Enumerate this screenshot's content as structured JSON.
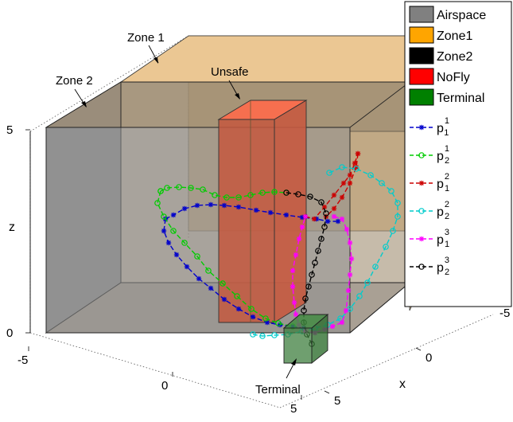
{
  "chart_data": {
    "type": "line3d",
    "xlabel": "x",
    "ylabel": "",
    "zlabel": "z",
    "xlim": [
      -5,
      5
    ],
    "ylim": [
      -5,
      5
    ],
    "zlim": [
      0,
      5
    ],
    "x_ticks": [
      "5",
      "0",
      "-5"
    ],
    "y_ticks": [
      "-5",
      "0",
      "5"
    ],
    "z_ticks": [
      "0",
      "5"
    ],
    "grid": false,
    "legend": {
      "placement": "top-right",
      "regions": [
        {
          "name": "Airspace",
          "color": "#808080"
        },
        {
          "name": "Zone1",
          "color": "#FFA500"
        },
        {
          "name": "Zone2",
          "color": "#000000"
        },
        {
          "name": "NoFly",
          "color": "#FF0000"
        },
        {
          "name": "Terminal",
          "color": "#008000"
        }
      ],
      "paths": [
        {
          "base": "p",
          "sub": "1",
          "sup": "1",
          "color": "#0000CC",
          "marker": "star"
        },
        {
          "base": "p",
          "sub": "2",
          "sup": "1",
          "color": "#00CC00",
          "marker": "circle"
        },
        {
          "base": "p",
          "sub": "1",
          "sup": "2",
          "color": "#CC0000",
          "marker": "star"
        },
        {
          "base": "p",
          "sub": "2",
          "sup": "2",
          "color": "#00CCCC",
          "marker": "circle"
        },
        {
          "base": "p",
          "sub": "1",
          "sup": "3",
          "color": "#FF00FF",
          "marker": "star"
        },
        {
          "base": "p",
          "sub": "2",
          "sup": "3",
          "color": "#000000",
          "marker": "circle"
        }
      ]
    },
    "annotations": [
      {
        "text": "Zone 1"
      },
      {
        "text": "Zone 2"
      },
      {
        "text": "Unsafe"
      },
      {
        "text": "Terminal"
      }
    ]
  }
}
